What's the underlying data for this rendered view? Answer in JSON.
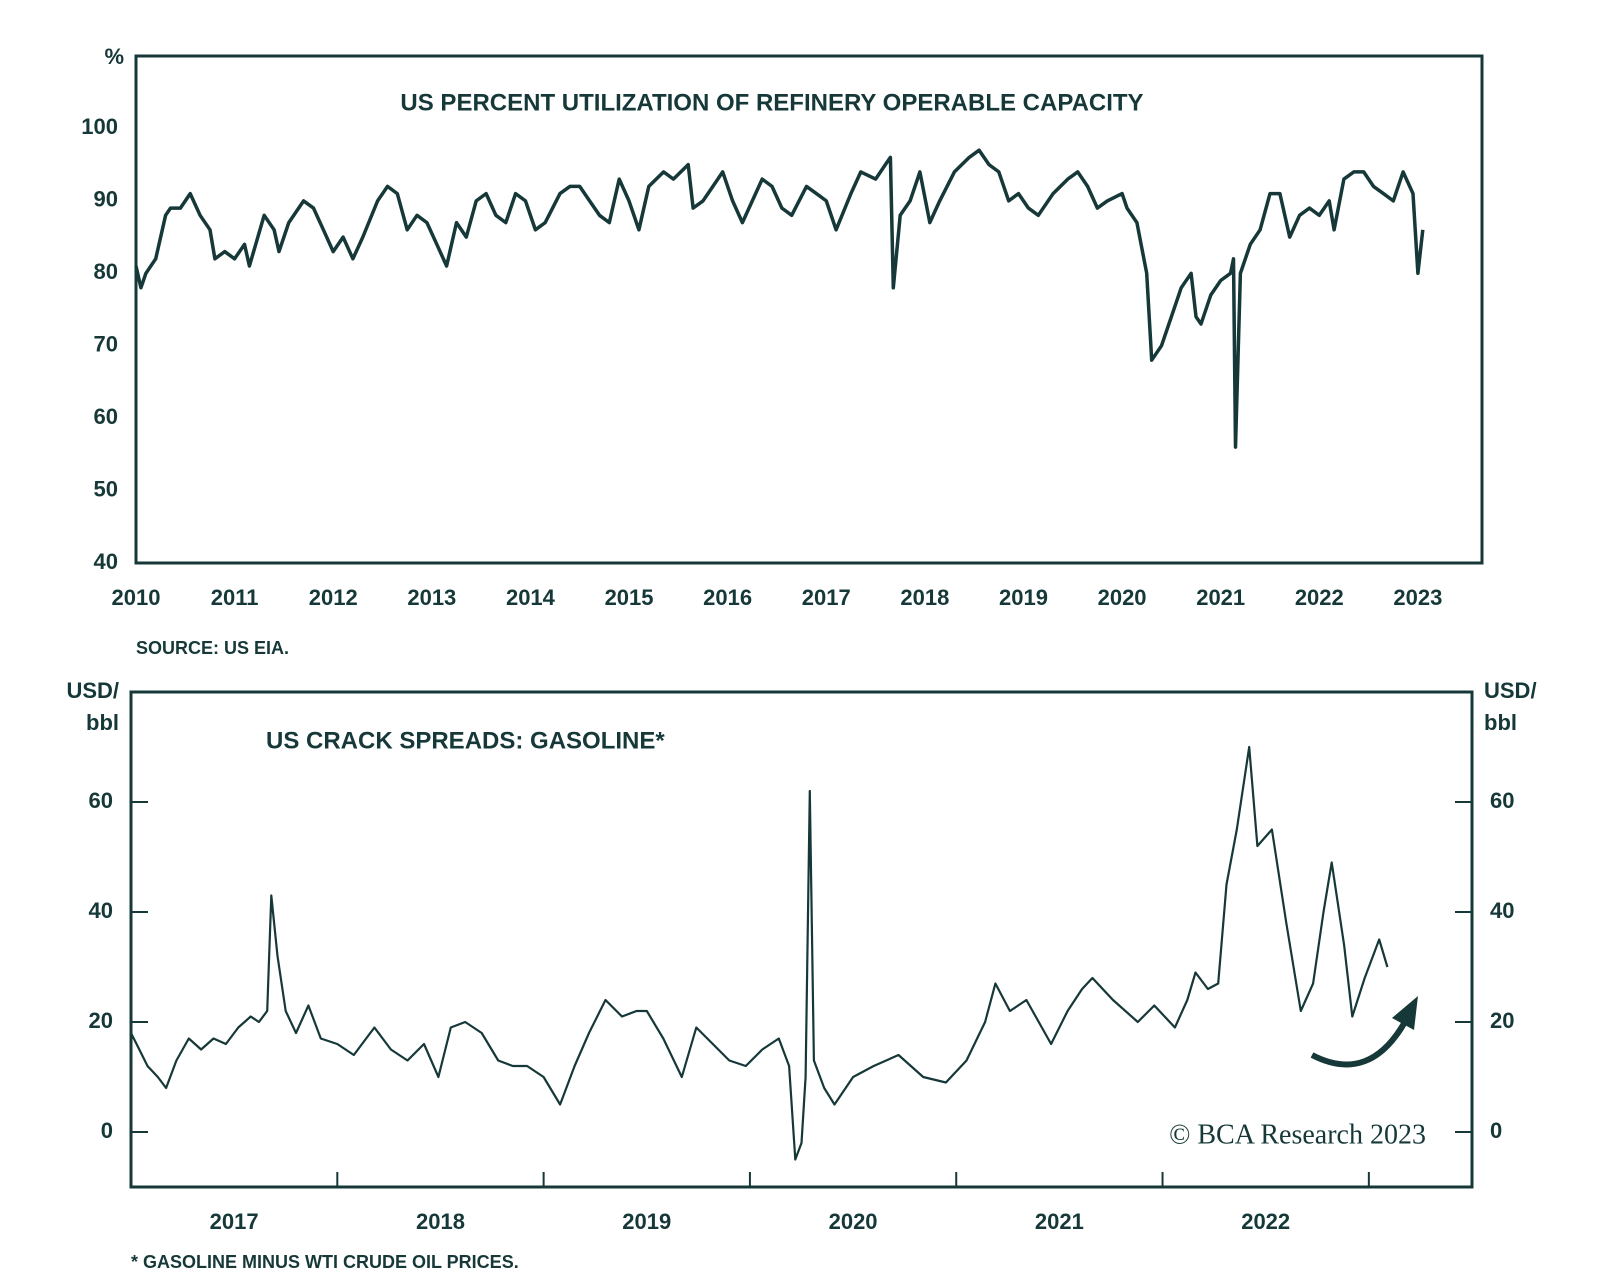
{
  "chart_data": [
    {
      "type": "line",
      "title": "US PERCENT UTILIZATION OF REFINERY OPERABLE CAPACITY",
      "ylabel": [
        "%"
      ],
      "source": "SOURCE: US EIA.",
      "color": "#163838",
      "xlim": [
        2010,
        2023.65
      ],
      "xticks": [
        2010,
        2011,
        2012,
        2013,
        2014,
        2015,
        2016,
        2017,
        2018,
        2019,
        2020,
        2021,
        2022,
        2023
      ],
      "ylim": [
        40,
        110
      ],
      "yticks": [
        40,
        50,
        60,
        70,
        80,
        90,
        100
      ],
      "x": [
        2010.0,
        2010.05,
        2010.1,
        2010.2,
        2010.3,
        2010.35,
        2010.45,
        2010.55,
        2010.65,
        2010.75,
        2010.8,
        2010.9,
        2011.0,
        2011.1,
        2011.15,
        2011.3,
        2011.4,
        2011.45,
        2011.55,
        2011.7,
        2011.8,
        2011.9,
        2012.0,
        2012.1,
        2012.2,
        2012.3,
        2012.45,
        2012.55,
        2012.65,
        2012.75,
        2012.85,
        2012.95,
        2013.05,
        2013.15,
        2013.25,
        2013.35,
        2013.45,
        2013.55,
        2013.65,
        2013.75,
        2013.85,
        2013.95,
        2014.05,
        2014.15,
        2014.3,
        2014.4,
        2014.5,
        2014.6,
        2014.7,
        2014.8,
        2014.9,
        2015.0,
        2015.1,
        2015.2,
        2015.35,
        2015.45,
        2015.6,
        2015.65,
        2015.75,
        2015.85,
        2015.95,
        2016.05,
        2016.15,
        2016.25,
        2016.35,
        2016.45,
        2016.55,
        2016.65,
        2016.8,
        2016.9,
        2017.0,
        2017.1,
        2017.25,
        2017.35,
        2017.5,
        2017.6,
        2017.65,
        2017.68,
        2017.75,
        2017.85,
        2017.95,
        2018.05,
        2018.15,
        2018.3,
        2018.45,
        2018.55,
        2018.65,
        2018.75,
        2018.85,
        2018.95,
        2019.05,
        2019.15,
        2019.3,
        2019.45,
        2019.55,
        2019.65,
        2019.75,
        2019.85,
        2020.0,
        2020.05,
        2020.15,
        2020.25,
        2020.3,
        2020.4,
        2020.5,
        2020.6,
        2020.7,
        2020.75,
        2020.8,
        2020.9,
        2021.0,
        2021.1,
        2021.13,
        2021.15,
        2021.2,
        2021.3,
        2021.4,
        2021.5,
        2021.6,
        2021.65,
        2021.7,
        2021.8,
        2021.9,
        2022.0,
        2022.1,
        2022.15,
        2022.25,
        2022.35,
        2022.45,
        2022.55,
        2022.65,
        2022.75,
        2022.85,
        2022.95,
        2023.0,
        2023.05
      ],
      "values": [
        81,
        78,
        80,
        82,
        88,
        89,
        89,
        91,
        88,
        86,
        82,
        83,
        82,
        84,
        81,
        88,
        86,
        83,
        87,
        90,
        89,
        86,
        83,
        85,
        82,
        85,
        90,
        92,
        91,
        86,
        88,
        87,
        84,
        81,
        87,
        85,
        90,
        91,
        88,
        87,
        91,
        90,
        86,
        87,
        91,
        92,
        92,
        90,
        88,
        87,
        93,
        90,
        86,
        92,
        94,
        93,
        95,
        89,
        90,
        92,
        94,
        90,
        87,
        90,
        93,
        92,
        89,
        88,
        92,
        91,
        90,
        86,
        91,
        94,
        93,
        95,
        96,
        78,
        88,
        90,
        94,
        87,
        90,
        94,
        96,
        97,
        95,
        94,
        90,
        91,
        89,
        88,
        91,
        93,
        94,
        92,
        89,
        90,
        91,
        89,
        87,
        80,
        68,
        70,
        74,
        78,
        80,
        74,
        73,
        77,
        79,
        80,
        82,
        56,
        80,
        84,
        86,
        91,
        91,
        88,
        85,
        88,
        89,
        88,
        90,
        86,
        93,
        94,
        94,
        92,
        91,
        90,
        94,
        91,
        80,
        86
      ]
    },
    {
      "type": "line",
      "title": "US CRACK SPREADS: GASOLINE*",
      "ylabel": [
        "USD/",
        "bbl"
      ],
      "y2label": [
        "USD/",
        "bbl"
      ],
      "footnote": "* GASOLINE MINUS WTI CRUDE OIL PRICES.",
      "annotation": "© BCA Research 2023",
      "color": "#163838",
      "xlim": [
        2017,
        2023.5
      ],
      "xticks": [
        {
          "value": 2017.5,
          "label": "2017"
        },
        {
          "value": 2018.5,
          "label": "2018"
        },
        {
          "value": 2019.5,
          "label": "2019"
        },
        {
          "value": 2020.5,
          "label": "2020"
        },
        {
          "value": 2021.5,
          "label": "2021"
        },
        {
          "value": 2022.5,
          "label": "2022"
        }
      ],
      "xtick_marks": [
        2018,
        2019,
        2020,
        2021,
        2022,
        2023
      ],
      "ylim": [
        -10,
        80
      ],
      "yticks": [
        0,
        20,
        40,
        60
      ],
      "y2lim": [
        -10,
        80
      ],
      "y2ticks": [
        0,
        20,
        40,
        60
      ],
      "x": [
        2017.0,
        2017.04,
        2017.08,
        2017.13,
        2017.17,
        2017.22,
        2017.28,
        2017.34,
        2017.4,
        2017.46,
        2017.52,
        2017.58,
        2017.62,
        2017.66,
        2017.68,
        2017.71,
        2017.75,
        2017.8,
        2017.86,
        2017.92,
        2018.0,
        2018.08,
        2018.18,
        2018.26,
        2018.34,
        2018.42,
        2018.49,
        2018.55,
        2018.62,
        2018.7,
        2018.78,
        2018.85,
        2018.92,
        2019.0,
        2019.08,
        2019.15,
        2019.22,
        2019.3,
        2019.38,
        2019.45,
        2019.5,
        2019.58,
        2019.67,
        2019.74,
        2019.82,
        2019.9,
        2019.98,
        2020.06,
        2020.14,
        2020.19,
        2020.22,
        2020.25,
        2020.27,
        2020.29,
        2020.31,
        2020.36,
        2020.41,
        2020.5,
        2020.6,
        2020.72,
        2020.84,
        2020.95,
        2021.05,
        2021.14,
        2021.19,
        2021.26,
        2021.34,
        2021.46,
        2021.54,
        2021.61,
        2021.66,
        2021.76,
        2021.88,
        2021.96,
        2022.06,
        2022.12,
        2022.16,
        2022.22,
        2022.27,
        2022.31,
        2022.36,
        2022.42,
        2022.46,
        2022.53,
        2022.6,
        2022.67,
        2022.73,
        2022.78,
        2022.82,
        2022.88,
        2022.92,
        2022.98,
        2023.05,
        2023.09
      ],
      "values": [
        18,
        15,
        12,
        10,
        8,
        13,
        17,
        15,
        17,
        16,
        19,
        21,
        20,
        22,
        43,
        32,
        22,
        18,
        23,
        17,
        16,
        14,
        19,
        15,
        13,
        16,
        10,
        19,
        20,
        18,
        13,
        12,
        12,
        10,
        5,
        12,
        18,
        24,
        21,
        22,
        22,
        17,
        10,
        19,
        16,
        13,
        12,
        15,
        17,
        12,
        -5,
        -2,
        10,
        62,
        13,
        8,
        5,
        10,
        12,
        14,
        10,
        9,
        13,
        20,
        27,
        22,
        24,
        16,
        22,
        26,
        28,
        24,
        20,
        23,
        19,
        24,
        29,
        26,
        27,
        45,
        55,
        70,
        52,
        55,
        38,
        22,
        27,
        40,
        49,
        34,
        21,
        28,
        35,
        30
      ]
    }
  ]
}
